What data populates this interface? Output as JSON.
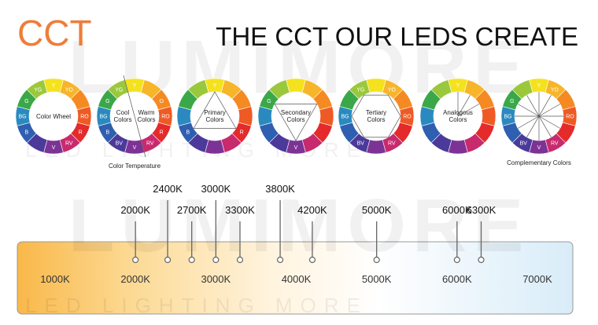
{
  "header": {
    "logo": "CCT",
    "title": "THE CCT OUR LEDS CREATE"
  },
  "watermark": {
    "brand": "LUMIMORE",
    "tagline": "LED LIGHTING MORE"
  },
  "wheels": [
    {
      "segments": [
        "Y",
        "YO",
        null,
        "RO",
        "R",
        "RV",
        "V",
        null,
        "B",
        "BG",
        "G",
        "YG"
      ],
      "center": [
        "Color Wheel"
      ]
    },
    {
      "segments": [
        "Y",
        null,
        "O",
        "RO",
        "R",
        "RV",
        "V",
        "BV",
        "B",
        "BG",
        "G",
        "YG"
      ],
      "center": [
        "Cool Colors",
        "Warm Colors"
      ],
      "caption": "Color Temperature"
    },
    {
      "segments": [
        "Y",
        null,
        null,
        null,
        "R",
        null,
        null,
        null,
        "B",
        null,
        null,
        null
      ],
      "center": [
        "Primary Colors"
      ]
    },
    {
      "segments": [
        null,
        null,
        null,
        null,
        null,
        null,
        "V",
        null,
        null,
        null,
        "G",
        null
      ],
      "center": [
        "Secondary Colors"
      ]
    },
    {
      "segments": [
        null,
        "YO",
        null,
        "RO",
        null,
        "RV",
        null,
        "BV",
        null,
        "BG",
        null,
        "YG"
      ],
      "center": [
        "Tertiary Colors"
      ]
    },
    {
      "segments": [
        "Y",
        null,
        null,
        null,
        null,
        null,
        null,
        null,
        null,
        null,
        null,
        null
      ],
      "center": [
        "Analogous Colors"
      ]
    },
    {
      "segments": [
        "Y",
        "YO",
        null,
        "RO",
        null,
        "RV",
        "V",
        "BV",
        null,
        "BG",
        "G",
        null
      ],
      "center": [],
      "caption": "Complementary Colors"
    }
  ],
  "scale": {
    "xlim": [
      1000,
      7000
    ],
    "ticks": [
      {
        "value": 1000,
        "label": "1000K"
      },
      {
        "value": 2000,
        "label": "2000K"
      },
      {
        "value": 3000,
        "label": "3000K"
      },
      {
        "value": 4000,
        "label": "4000K"
      },
      {
        "value": 5000,
        "label": "5000K"
      },
      {
        "value": 6000,
        "label": "6000K"
      },
      {
        "value": 7000,
        "label": "7000K"
      }
    ],
    "markers": [
      {
        "value": 2000,
        "label": "2000K"
      },
      {
        "value": 2400,
        "label": "2400K"
      },
      {
        "value": 2700,
        "label": "2700K"
      },
      {
        "value": 3000,
        "label": "3000K"
      },
      {
        "value": 3300,
        "label": "3300K"
      },
      {
        "value": 3800,
        "label": "3800K"
      },
      {
        "value": 4200,
        "label": "4200K"
      },
      {
        "value": 5000,
        "label": "5000K"
      },
      {
        "value": 6000,
        "label": "6000K"
      },
      {
        "value": 6300,
        "label": "6300K"
      }
    ]
  }
}
